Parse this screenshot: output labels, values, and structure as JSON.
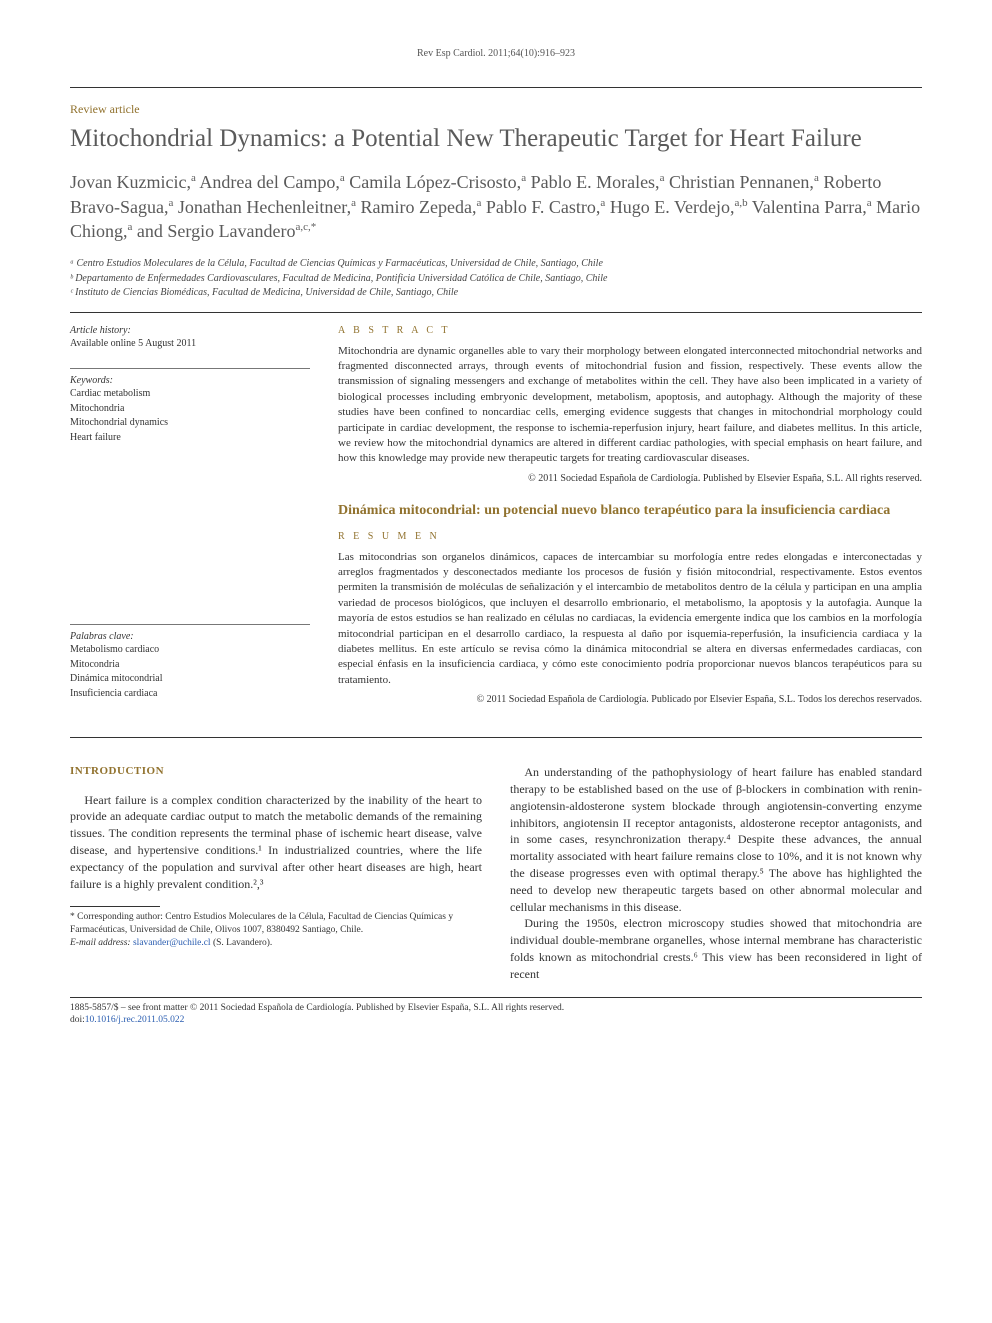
{
  "journal_ref": "Rev Esp Cardiol. 2011;64(10):916–923",
  "article_type": "Review article",
  "title": "Mitochondrial Dynamics: a Potential New Therapeutic Target for Heart Failure",
  "authors_html": "Jovan Kuzmicic,<sup>a</sup> Andrea del Campo,<sup>a</sup> Camila López-Crisosto,<sup>a</sup> Pablo E. Morales,<sup>a</sup> Christian Pennanen,<sup>a</sup> Roberto Bravo-Sagua,<sup>a</sup> Jonathan Hechenleitner,<sup>a</sup> Ramiro Zepeda,<sup>a</sup> Pablo F. Castro,<sup>a</sup> Hugo E. Verdejo,<sup>a,b</sup> Valentina Parra,<sup>a</sup> Mario Chiong,<sup>a</sup> and Sergio Lavandero<sup>a,c,*</sup>",
  "affiliations": [
    "ᵃ Centro Estudios Moleculares de la Célula, Facultad de Ciencias Químicas y Farmacéuticas, Universidad de Chile, Santiago, Chile",
    "ᵇ Departamento de Enfermedades Cardiovasculares, Facultad de Medicina, Pontificia Universidad Católica de Chile, Santiago, Chile",
    "ᶜ Instituto de Ciencias Biomédicas, Facultad de Medicina, Universidad de Chile, Santiago, Chile"
  ],
  "history": {
    "label": "Article history:",
    "line": "Available online 5 August 2011"
  },
  "keywords": {
    "label": "Keywords:",
    "items": [
      "Cardiac metabolism",
      "Mitochondria",
      "Mitochondrial dynamics",
      "Heart failure"
    ]
  },
  "palabras": {
    "label": "Palabras clave:",
    "items": [
      "Metabolismo cardiaco",
      "Mitocondria",
      "Dinámica mitocondrial",
      "Insuficiencia cardiaca"
    ]
  },
  "abstract": {
    "head": "A B S T R A C T",
    "text": "Mitochondria are dynamic organelles able to vary their morphology between elongated interconnected mitochondrial networks and fragmented disconnected arrays, through events of mitochondrial fusion and fission, respectively. These events allow the transmission of signaling messengers and exchange of metabolites within the cell. They have also been implicated in a variety of biological processes including embryonic development, metabolism, apoptosis, and autophagy. Although the majority of these studies have been confined to noncardiac cells, emerging evidence suggests that changes in mitochondrial morphology could participate in cardiac development, the response to ischemia-reperfusion injury, heart failure, and diabetes mellitus. In this article, we review how the mitochondrial dynamics are altered in different cardiac pathologies, with special emphasis on heart failure, and how this knowledge may provide new therapeutic targets for treating cardiovascular diseases.",
    "copyright": "© 2011 Sociedad Española de Cardiología. Published by Elsevier España, S.L. All rights reserved."
  },
  "alt_title": "Dinámica mitocondrial: un potencial nuevo blanco terapéutico para la insuficiencia cardiaca",
  "resumen": {
    "head": "R E S U M E N",
    "text": "Las mitocondrias son organelos dinámicos, capaces de intercambiar su morfología entre redes elongadas e interconectadas y arreglos fragmentados y desconectados mediante los procesos de fusión y fisión mitocondrial, respectivamente. Estos eventos permiten la transmisión de moléculas de señalización y el intercambio de metabolitos dentro de la célula y participan en una amplia variedad de procesos biológicos, que incluyen el desarrollo embrionario, el metabolismo, la apoptosis y la autofagia. Aunque la mayoría de estos estudios se han realizado en células no cardiacas, la evidencia emergente indica que los cambios en la morfología mitocondrial participan en el desarrollo cardiaco, la respuesta al daño por isquemia-reperfusión, la insuficiencia cardiaca y la diabetes mellitus. En este artículo se revisa cómo la dinámica mitocondrial se altera en diversas enfermedades cardiacas, con especial énfasis en la insuficiencia cardiaca, y cómo este conocimiento podría proporcionar nuevos blancos terapéuticos para su tratamiento.",
    "copyright": "© 2011 Sociedad Española de Cardiología. Publicado por Elsevier España, S.L. Todos los derechos reservados."
  },
  "intro": {
    "head": "INTRODUCTION",
    "p1": "Heart failure is a complex condition characterized by the inability of the heart to provide an adequate cardiac output to match the metabolic demands of the remaining tissues. The condition represents the terminal phase of ischemic heart disease, valve disease, and hypertensive conditions.¹ In industrialized countries, where the life expectancy of the population and survival after other heart diseases are high, heart failure is a highly prevalent condition.²,³",
    "p2": "An understanding of the pathophysiology of heart failure has enabled standard therapy to be established based on the use of β-blockers in combination with renin-angiotensin-aldosterone system blockade through angiotensin-converting enzyme inhibitors, angiotensin II receptor antagonists, aldosterone receptor antagonists, and in some cases, resynchronization therapy.⁴ Despite these advances, the annual mortality associated with heart failure remains close to 10%, and it is not known why the disease progresses even with optimal therapy.⁵ The above has highlighted the need to develop new therapeutic targets based on other abnormal molecular and cellular mechanisms in this disease.",
    "p3": "During the 1950s, electron microscopy studies showed that mitochondria are individual double-membrane organelles, whose internal membrane has characteristic folds known as mitochondrial crests.⁶ This view has been reconsidered in light of recent"
  },
  "corresponding": {
    "star": "*",
    "text": "Corresponding author: Centro Estudios Moleculares de la Célula, Facultad de Ciencias Químicas y Farmacéuticas, Universidad de Chile, Olivos 1007, 8380492 Santiago, Chile.",
    "email_label": "E-mail address:",
    "email": "slavander@uchile.cl",
    "email_who": "(S. Lavandero)."
  },
  "footer": {
    "line1": "1885-5857/$ – see front matter © 2011 Sociedad Española de Cardiología. Published by Elsevier España, S.L. All rights reserved.",
    "doi_label": "doi:",
    "doi": "10.1016/j.rec.2011.05.022"
  },
  "colors": {
    "accent": "#91722e",
    "text": "#333333",
    "heading": "#5a5a5a",
    "link": "#2a5db0",
    "rule": "#333333"
  }
}
